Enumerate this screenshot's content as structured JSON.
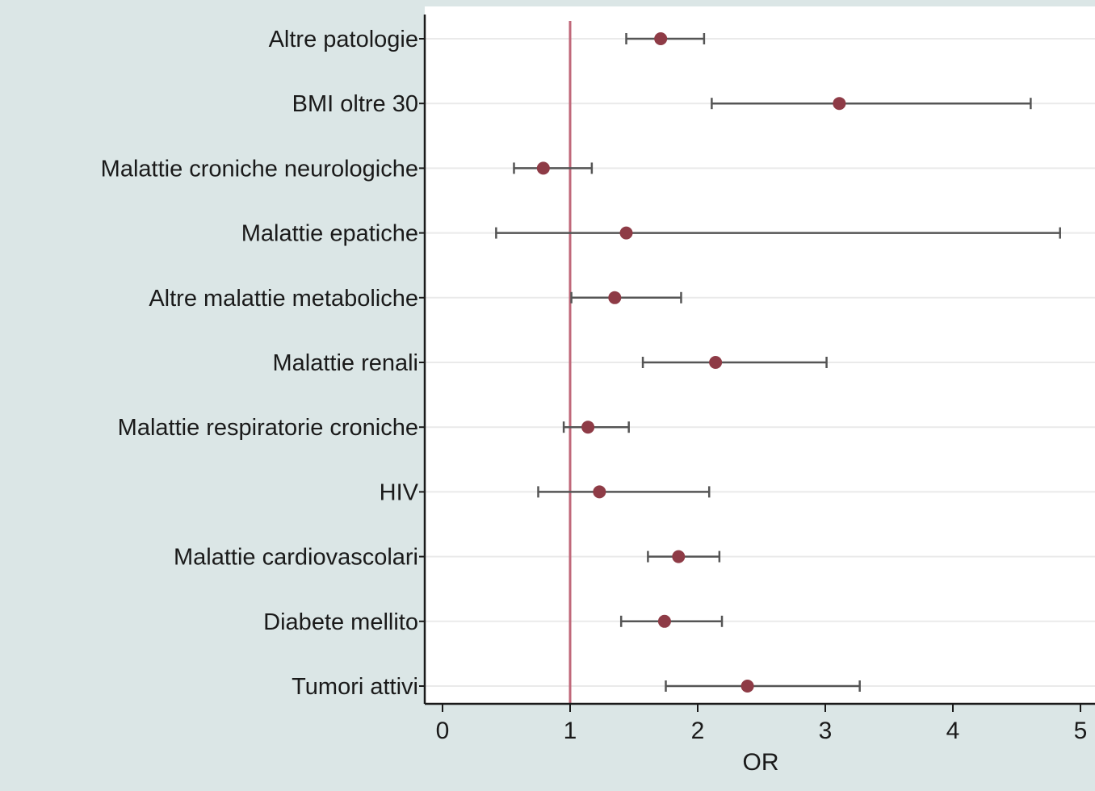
{
  "chart_data": {
    "type": "forest",
    "xlabel": "OR",
    "xlim": [
      0,
      5
    ],
    "xticks": [
      "0",
      "1",
      "2",
      "3",
      "4",
      "5"
    ],
    "reference_line": 1,
    "grid": "horizontal",
    "categories": [
      "Altre patologie",
      "BMI oltre 30",
      "Malattie croniche neurologiche",
      "Malattie epatiche",
      "Altre malattie metaboliche",
      "Malattie renali",
      "Malattie respiratorie croniche",
      "HIV",
      "Malattie cardiovascolari",
      "Diabete mellito",
      "Tumori attivi"
    ],
    "or": [
      1.71,
      3.11,
      0.79,
      1.44,
      1.35,
      2.14,
      1.14,
      1.23,
      1.85,
      1.74,
      2.39
    ],
    "ci_low": [
      1.44,
      2.11,
      0.56,
      0.42,
      1.01,
      1.57,
      0.95,
      0.75,
      1.61,
      1.4,
      1.75
    ],
    "ci_high": [
      2.05,
      4.61,
      1.17,
      4.84,
      1.87,
      3.01,
      1.46,
      2.09,
      2.17,
      2.19,
      3.27
    ]
  },
  "colors": {
    "background": "#dbe6e6",
    "plot_area": "#ffffff",
    "reference_line": "#c0687a",
    "marker": "#8e3b46",
    "whisker": "#555555",
    "grid": "#eaeaea",
    "axis": "#1a1a1a"
  }
}
